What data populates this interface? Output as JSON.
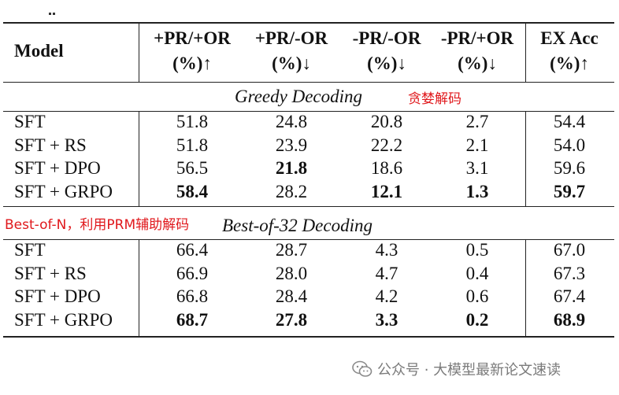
{
  "header": {
    "model": "Model",
    "cols": [
      {
        "top": "+PR/+OR",
        "bottom": "(%)↑"
      },
      {
        "top": "+PR/-OR",
        "bottom": "(%)↓"
      },
      {
        "top": "-PR/-OR",
        "bottom": "(%)↓"
      },
      {
        "top": "-PR/+OR",
        "bottom": "(%)↓"
      },
      {
        "top": "EX Acc",
        "bottom": "(%)↑"
      }
    ]
  },
  "sections": [
    {
      "title": "Greedy Decoding",
      "annotation": "贪婪解码",
      "rows": [
        {
          "model": "SFT",
          "values": [
            "51.8",
            "24.8",
            "20.8",
            "2.7",
            "54.4"
          ],
          "bold": [
            false,
            false,
            false,
            false,
            false
          ]
        },
        {
          "model": "SFT + RS",
          "values": [
            "51.8",
            "23.9",
            "22.2",
            "2.1",
            "54.0"
          ],
          "bold": [
            false,
            false,
            false,
            false,
            false
          ]
        },
        {
          "model": "SFT + DPO",
          "values": [
            "56.5",
            "21.8",
            "18.6",
            "3.1",
            "59.6"
          ],
          "bold": [
            false,
            true,
            false,
            false,
            false
          ]
        },
        {
          "model": "SFT + GRPO",
          "values": [
            "58.4",
            "28.2",
            "12.1",
            "1.3",
            "59.7"
          ],
          "bold": [
            true,
            false,
            true,
            true,
            true
          ]
        }
      ]
    },
    {
      "title": "Best-of-32 Decoding",
      "annotation": "Best-of-N，利用PRM辅助解码",
      "rows": [
        {
          "model": "SFT",
          "values": [
            "66.4",
            "28.7",
            "4.3",
            "0.5",
            "67.0"
          ],
          "bold": [
            false,
            false,
            false,
            false,
            false
          ]
        },
        {
          "model": "SFT + RS",
          "values": [
            "66.9",
            "28.0",
            "4.7",
            "0.4",
            "67.3"
          ],
          "bold": [
            false,
            false,
            false,
            false,
            false
          ]
        },
        {
          "model": "SFT + DPO",
          "values": [
            "66.8",
            "28.4",
            "4.2",
            "0.6",
            "67.4"
          ],
          "bold": [
            false,
            false,
            false,
            false,
            false
          ]
        },
        {
          "model": "SFT + GRPO",
          "values": [
            "68.7",
            "27.8",
            "3.3",
            "0.2",
            "68.9"
          ],
          "bold": [
            true,
            true,
            true,
            true,
            true
          ]
        }
      ]
    }
  ],
  "watermark": {
    "icon": "wechat-icon",
    "text": "公众号 · 大模型最新论文速读"
  },
  "colors": {
    "annotation": "#e0181c",
    "rule": "#222222",
    "watermark": "#7a7a7a"
  }
}
